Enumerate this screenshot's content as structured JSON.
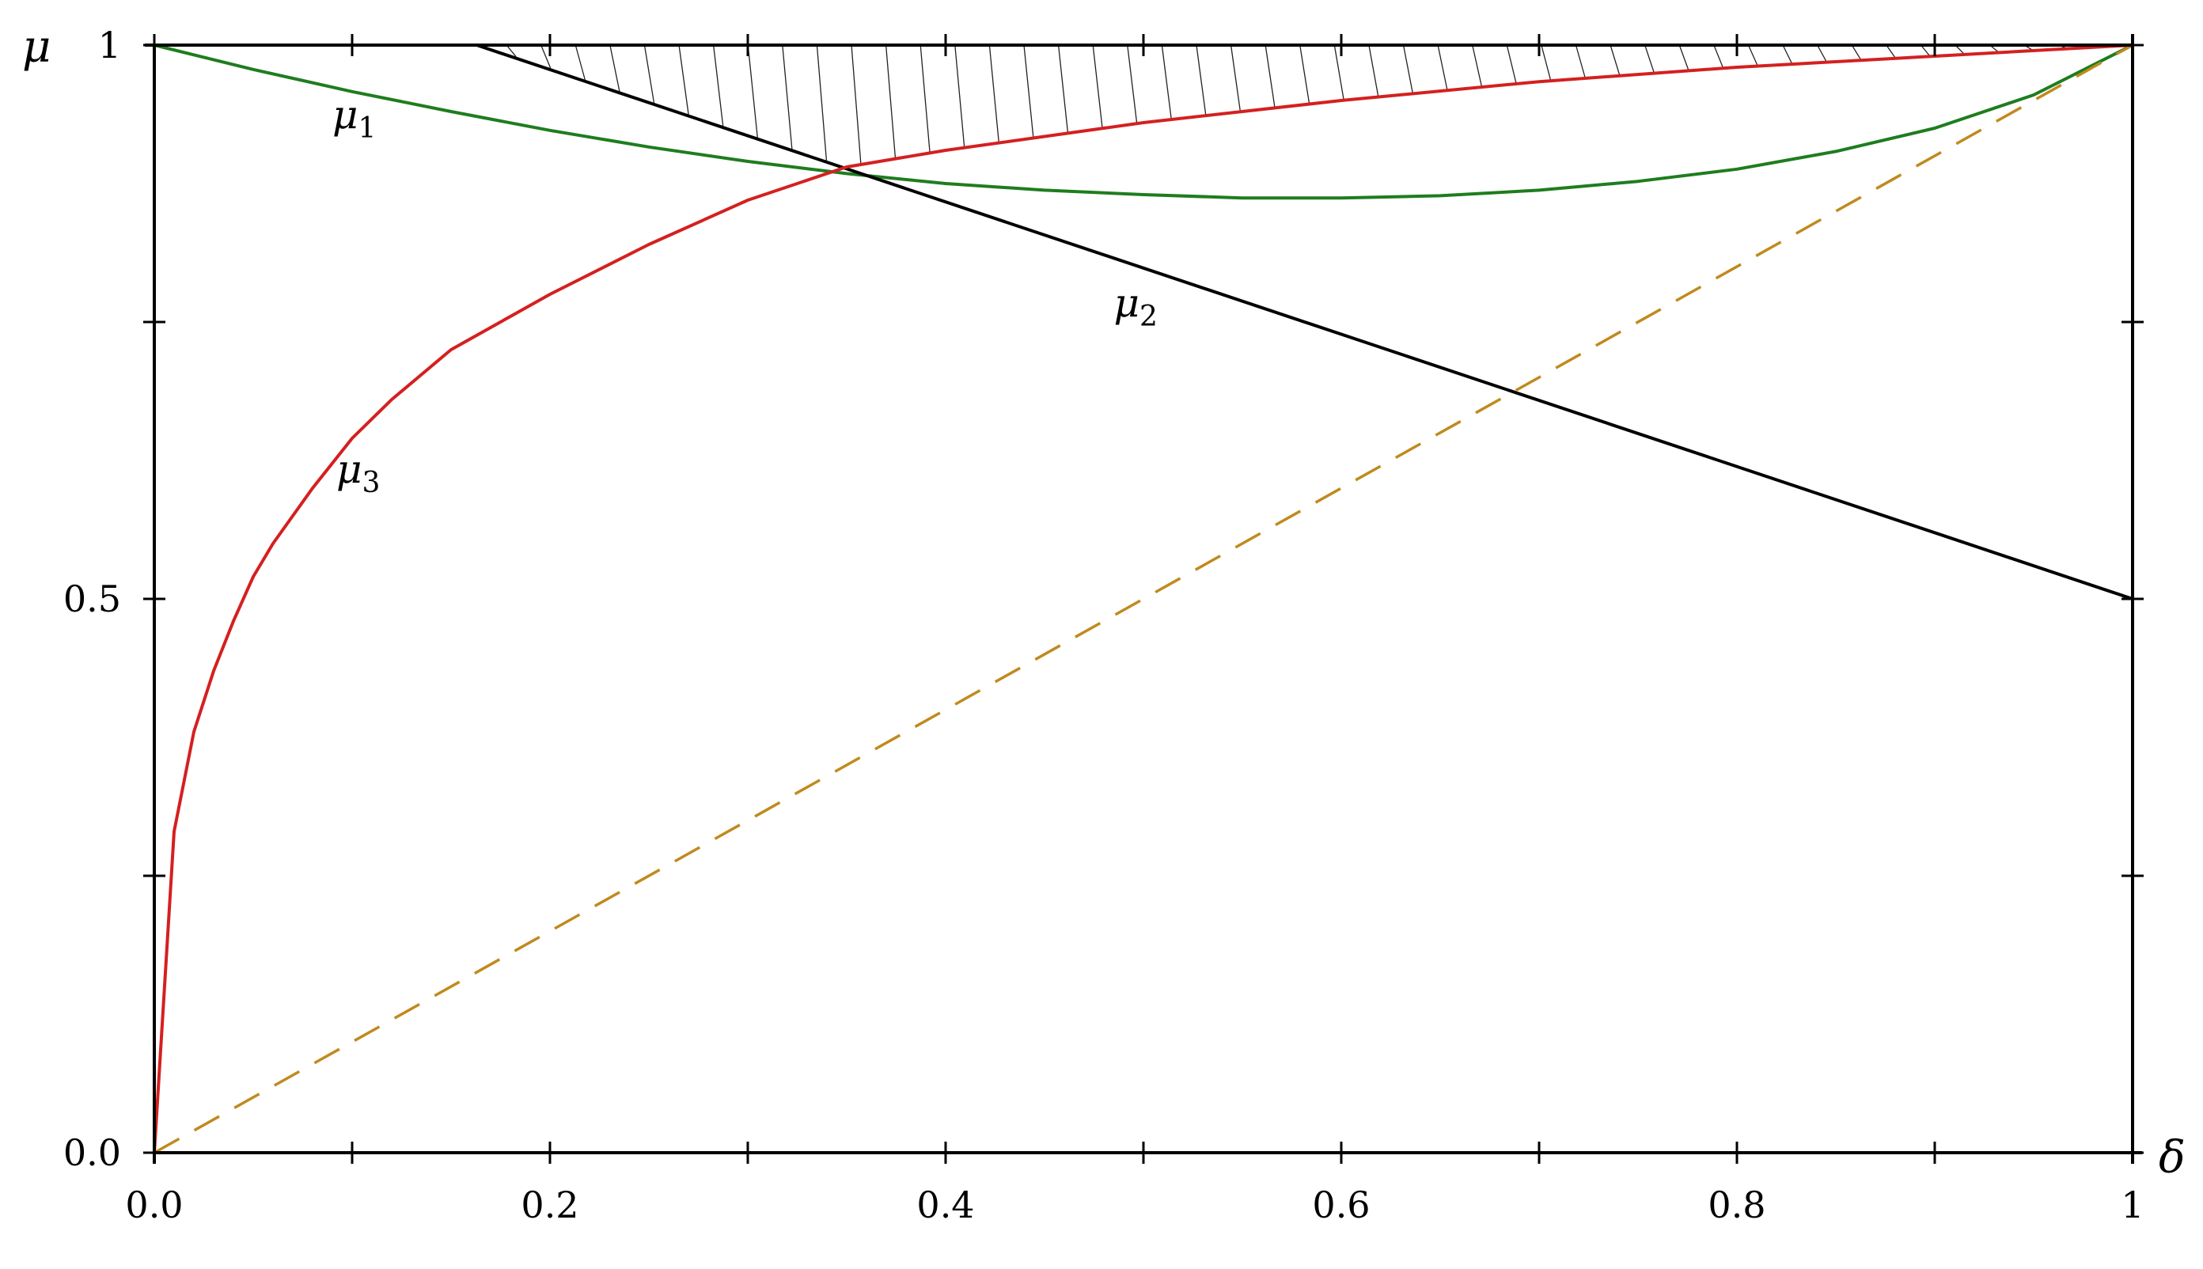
{
  "chart_data": {
    "type": "line",
    "title": "",
    "xlabel": "δ",
    "ylabel": "μ",
    "xlim": [
      0,
      1
    ],
    "ylim": [
      0,
      1
    ],
    "grid": false,
    "x_ticks": [
      0,
      0.1,
      0.2,
      0.3,
      0.4,
      0.5,
      0.6,
      0.7,
      0.8,
      0.9,
      1
    ],
    "x_tick_labels": [
      {
        "value": 0,
        "text": "0.0"
      },
      {
        "value": 0.2,
        "text": "0.2"
      },
      {
        "value": 0.4,
        "text": "0.4"
      },
      {
        "value": 0.6,
        "text": "0.6"
      },
      {
        "value": 0.8,
        "text": "0.8"
      },
      {
        "value": 1,
        "text": "1"
      }
    ],
    "y_ticks": [
      0,
      0.25,
      0.5,
      0.75,
      1
    ],
    "y_tick_labels": [
      {
        "value": 0,
        "text": "0.0"
      },
      {
        "value": 0.5,
        "text": "0.5"
      },
      {
        "value": 1,
        "text": "1"
      }
    ],
    "series": [
      {
        "name": "μ1",
        "label_main": "μ",
        "label_sub": "1",
        "label_at": [
          0.09,
          0.925
        ],
        "color": "#1e7d1e",
        "style": "solid",
        "points": [
          [
            0,
            1
          ],
          [
            0.05,
            0.978
          ],
          [
            0.1,
            0.958
          ],
          [
            0.15,
            0.94
          ],
          [
            0.2,
            0.923
          ],
          [
            0.25,
            0.908
          ],
          [
            0.3,
            0.895
          ],
          [
            0.35,
            0.884
          ],
          [
            0.4,
            0.875
          ],
          [
            0.45,
            0.869
          ],
          [
            0.5,
            0.865
          ],
          [
            0.55,
            0.862
          ],
          [
            0.6,
            0.862
          ],
          [
            0.65,
            0.864
          ],
          [
            0.7,
            0.869
          ],
          [
            0.75,
            0.877
          ],
          [
            0.8,
            0.888
          ],
          [
            0.85,
            0.904
          ],
          [
            0.9,
            0.925
          ],
          [
            0.95,
            0.955
          ],
          [
            1,
            1
          ]
        ]
      },
      {
        "name": "μ2",
        "label_main": "μ",
        "label_sub": "2",
        "label_at": [
          0.485,
          0.755
        ],
        "color": "#000000",
        "style": "solid",
        "points": [
          [
            0.163,
            1
          ],
          [
            1,
            0.5
          ]
        ]
      },
      {
        "name": "μ3",
        "label_main": "μ",
        "label_sub": "3",
        "label_at": [
          0.092,
          0.605
        ],
        "color": "#d42020",
        "style": "solid",
        "points": [
          [
            0,
            0
          ],
          [
            0.01,
            0.29
          ],
          [
            0.02,
            0.38
          ],
          [
            0.03,
            0.435
          ],
          [
            0.04,
            0.48
          ],
          [
            0.05,
            0.52
          ],
          [
            0.06,
            0.55
          ],
          [
            0.08,
            0.6
          ],
          [
            0.1,
            0.645
          ],
          [
            0.12,
            0.68
          ],
          [
            0.15,
            0.725
          ],
          [
            0.2,
            0.775
          ],
          [
            0.25,
            0.82
          ],
          [
            0.3,
            0.86
          ],
          [
            0.35,
            0.89
          ],
          [
            0.4,
            0.905
          ],
          [
            0.5,
            0.93
          ],
          [
            0.6,
            0.95
          ],
          [
            0.7,
            0.967
          ],
          [
            0.8,
            0.98
          ],
          [
            0.9,
            0.99
          ],
          [
            1,
            1
          ]
        ]
      },
      {
        "name": "",
        "color": "#c08a1e",
        "style": "dashed",
        "points": [
          [
            0,
            0
          ],
          [
            1,
            1
          ]
        ]
      }
    ],
    "shaded_region": {
      "style": "hatched",
      "upper": "μ = 1",
      "lower": "max(μ1, μ2, μ3)",
      "x_range": [
        0.163,
        1
      ]
    }
  }
}
